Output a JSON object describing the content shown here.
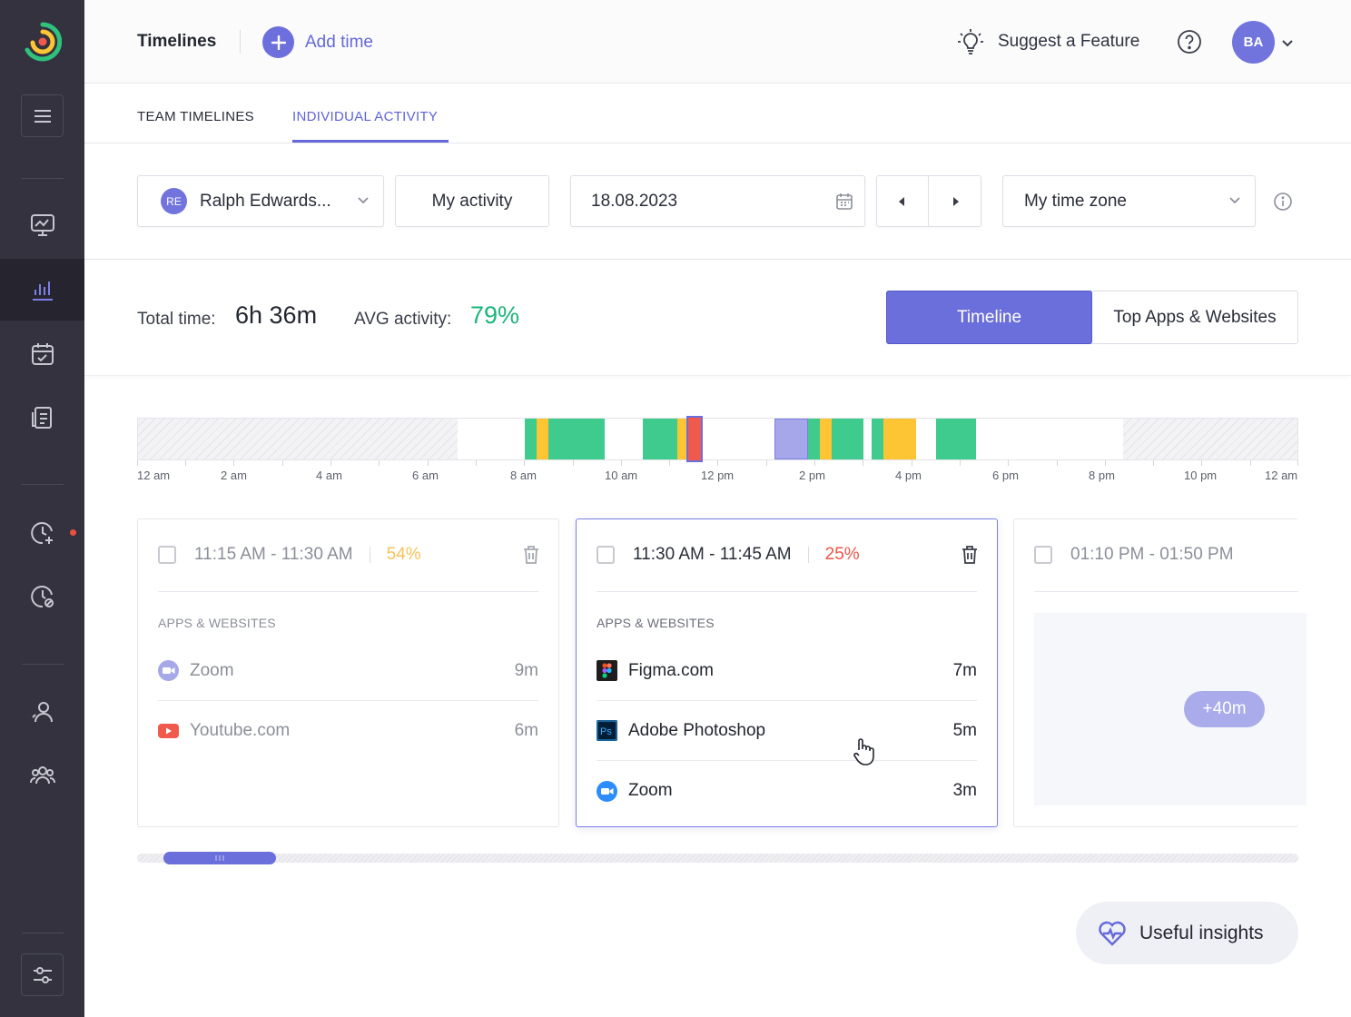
{
  "header": {
    "title": "Timelines",
    "add_time": "Add time",
    "suggest": "Suggest a Feature",
    "avatar": "BA"
  },
  "tabs": [
    {
      "label": "TEAM TIMELINES",
      "active": false
    },
    {
      "label": "INDIVIDUAL ACTIVITY",
      "active": true
    }
  ],
  "filters": {
    "user_initials": "RE",
    "user_name": "Ralph Edwards...",
    "activity": "My activity",
    "date": "18.08.2023",
    "timezone": "My time zone"
  },
  "stats": {
    "total_label": "Total time:",
    "total_value": "6h 36m",
    "avg_label": "AVG activity:",
    "avg_value": "79%"
  },
  "view_toggle": {
    "timeline": "Timeline",
    "top_apps": "Top Apps & Websites"
  },
  "timeline": {
    "labels": [
      "12 am",
      "2 am",
      "4 am",
      "6 am",
      "8 am",
      "10 am",
      "12 pm",
      "2 pm",
      "4 pm",
      "6 pm",
      "8 pm",
      "10 pm",
      "12 am"
    ],
    "colors": {
      "green": "#3ecb8d",
      "yellow": "#fdc433",
      "red": "#ef5a4c",
      "purple": "#a5a7ea"
    }
  },
  "cards": [
    {
      "time": "11:15 AM - 11:30 AM",
      "pct": "54%",
      "sub": "APPS & WEBSITES",
      "apps": [
        {
          "name": "Zoom",
          "dur": "9m",
          "icon": "zoom-icon"
        },
        {
          "name": "Youtube.com",
          "dur": "6m",
          "icon": "youtube-icon"
        }
      ]
    },
    {
      "time": "11:30 AM - 11:45 AM",
      "pct": "25%",
      "sub": "APPS & WEBSITES",
      "apps": [
        {
          "name": "Figma.com",
          "dur": "7m",
          "icon": "figma-icon"
        },
        {
          "name": "Adobe Photoshop",
          "dur": "5m",
          "icon": "photoshop-icon"
        },
        {
          "name": "Zoom",
          "dur": "3m",
          "icon": "zoom-icon"
        }
      ]
    },
    {
      "time": "01:10 PM - 01:50 PM",
      "more": "+40m"
    }
  ],
  "insights": "Useful insights"
}
